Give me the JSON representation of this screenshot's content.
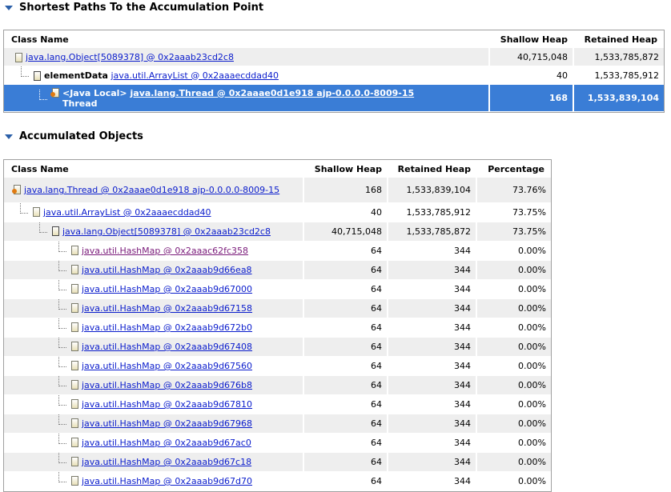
{
  "sections": [
    {
      "title": "Shortest Paths To the Accumulation Point",
      "table": {
        "columns": [
          "Class Name",
          "Shallow Heap",
          "Retained Heap"
        ],
        "rows": [
          {
            "name": "java.lang.Object[5089378] @ 0x2aaab23cd2c8",
            "shallow_heap": "40,715,048",
            "retained_heap": "1,533,785,872"
          },
          {
            "field": "elementData",
            "name": "java.util.ArrayList @ 0x2aaaecddad40",
            "shallow_heap": "40",
            "retained_heap": "1,533,785,912"
          },
          {
            "field": "<Java Local>",
            "name": "java.lang.Thread @ 0x2aaae0d1e918 ajp-0.0.0.0-8009-15",
            "root_type": "Thread",
            "shallow_heap": "168",
            "retained_heap": "1,533,839,104"
          }
        ]
      }
    },
    {
      "title": "Accumulated Objects",
      "table": {
        "columns": [
          "Class Name",
          "Shallow Heap",
          "Retained Heap",
          "Percentage"
        ],
        "rows": [
          {
            "name": "java.lang.Thread @ 0x2aaae0d1e918 ajp-0.0.0.0-8009-15",
            "shallow_heap": "168",
            "retained_heap": "1,533,839,104",
            "percentage": "73.76%"
          },
          {
            "name": "java.util.ArrayList @ 0x2aaaecddad40",
            "shallow_heap": "40",
            "retained_heap": "1,533,785,912",
            "percentage": "73.75%"
          },
          {
            "name": "java.lang.Object[5089378] @ 0x2aaab23cd2c8",
            "shallow_heap": "40,715,048",
            "retained_heap": "1,533,785,872",
            "percentage": "73.75%"
          },
          {
            "name": "java.util.HashMap @ 0x2aaac62fc358",
            "shallow_heap": "64",
            "retained_heap": "344",
            "percentage": "0.00%"
          },
          {
            "name": "java.util.HashMap @ 0x2aaab9d66ea8",
            "shallow_heap": "64",
            "retained_heap": "344",
            "percentage": "0.00%"
          },
          {
            "name": "java.util.HashMap @ 0x2aaab9d67000",
            "shallow_heap": "64",
            "retained_heap": "344",
            "percentage": "0.00%"
          },
          {
            "name": "java.util.HashMap @ 0x2aaab9d67158",
            "shallow_heap": "64",
            "retained_heap": "344",
            "percentage": "0.00%"
          },
          {
            "name": "java.util.HashMap @ 0x2aaab9d672b0",
            "shallow_heap": "64",
            "retained_heap": "344",
            "percentage": "0.00%"
          },
          {
            "name": "java.util.HashMap @ 0x2aaab9d67408",
            "shallow_heap": "64",
            "retained_heap": "344",
            "percentage": "0.00%"
          },
          {
            "name": "java.util.HashMap @ 0x2aaab9d67560",
            "shallow_heap": "64",
            "retained_heap": "344",
            "percentage": "0.00%"
          },
          {
            "name": "java.util.HashMap @ 0x2aaab9d676b8",
            "shallow_heap": "64",
            "retained_heap": "344",
            "percentage": "0.00%"
          },
          {
            "name": "java.util.HashMap @ 0x2aaab9d67810",
            "shallow_heap": "64",
            "retained_heap": "344",
            "percentage": "0.00%"
          },
          {
            "name": "java.util.HashMap @ 0x2aaab9d67968",
            "shallow_heap": "64",
            "retained_heap": "344",
            "percentage": "0.00%"
          },
          {
            "name": "java.util.HashMap @ 0x2aaab9d67ac0",
            "shallow_heap": "64",
            "retained_heap": "344",
            "percentage": "0.00%"
          },
          {
            "name": "java.util.HashMap @ 0x2aaab9d67c18",
            "shallow_heap": "64",
            "retained_heap": "344",
            "percentage": "0.00%"
          },
          {
            "name": "java.util.HashMap @ 0x2aaab9d67d70",
            "shallow_heap": "64",
            "retained_heap": "344",
            "percentage": "0.00%"
          }
        ]
      }
    }
  ]
}
